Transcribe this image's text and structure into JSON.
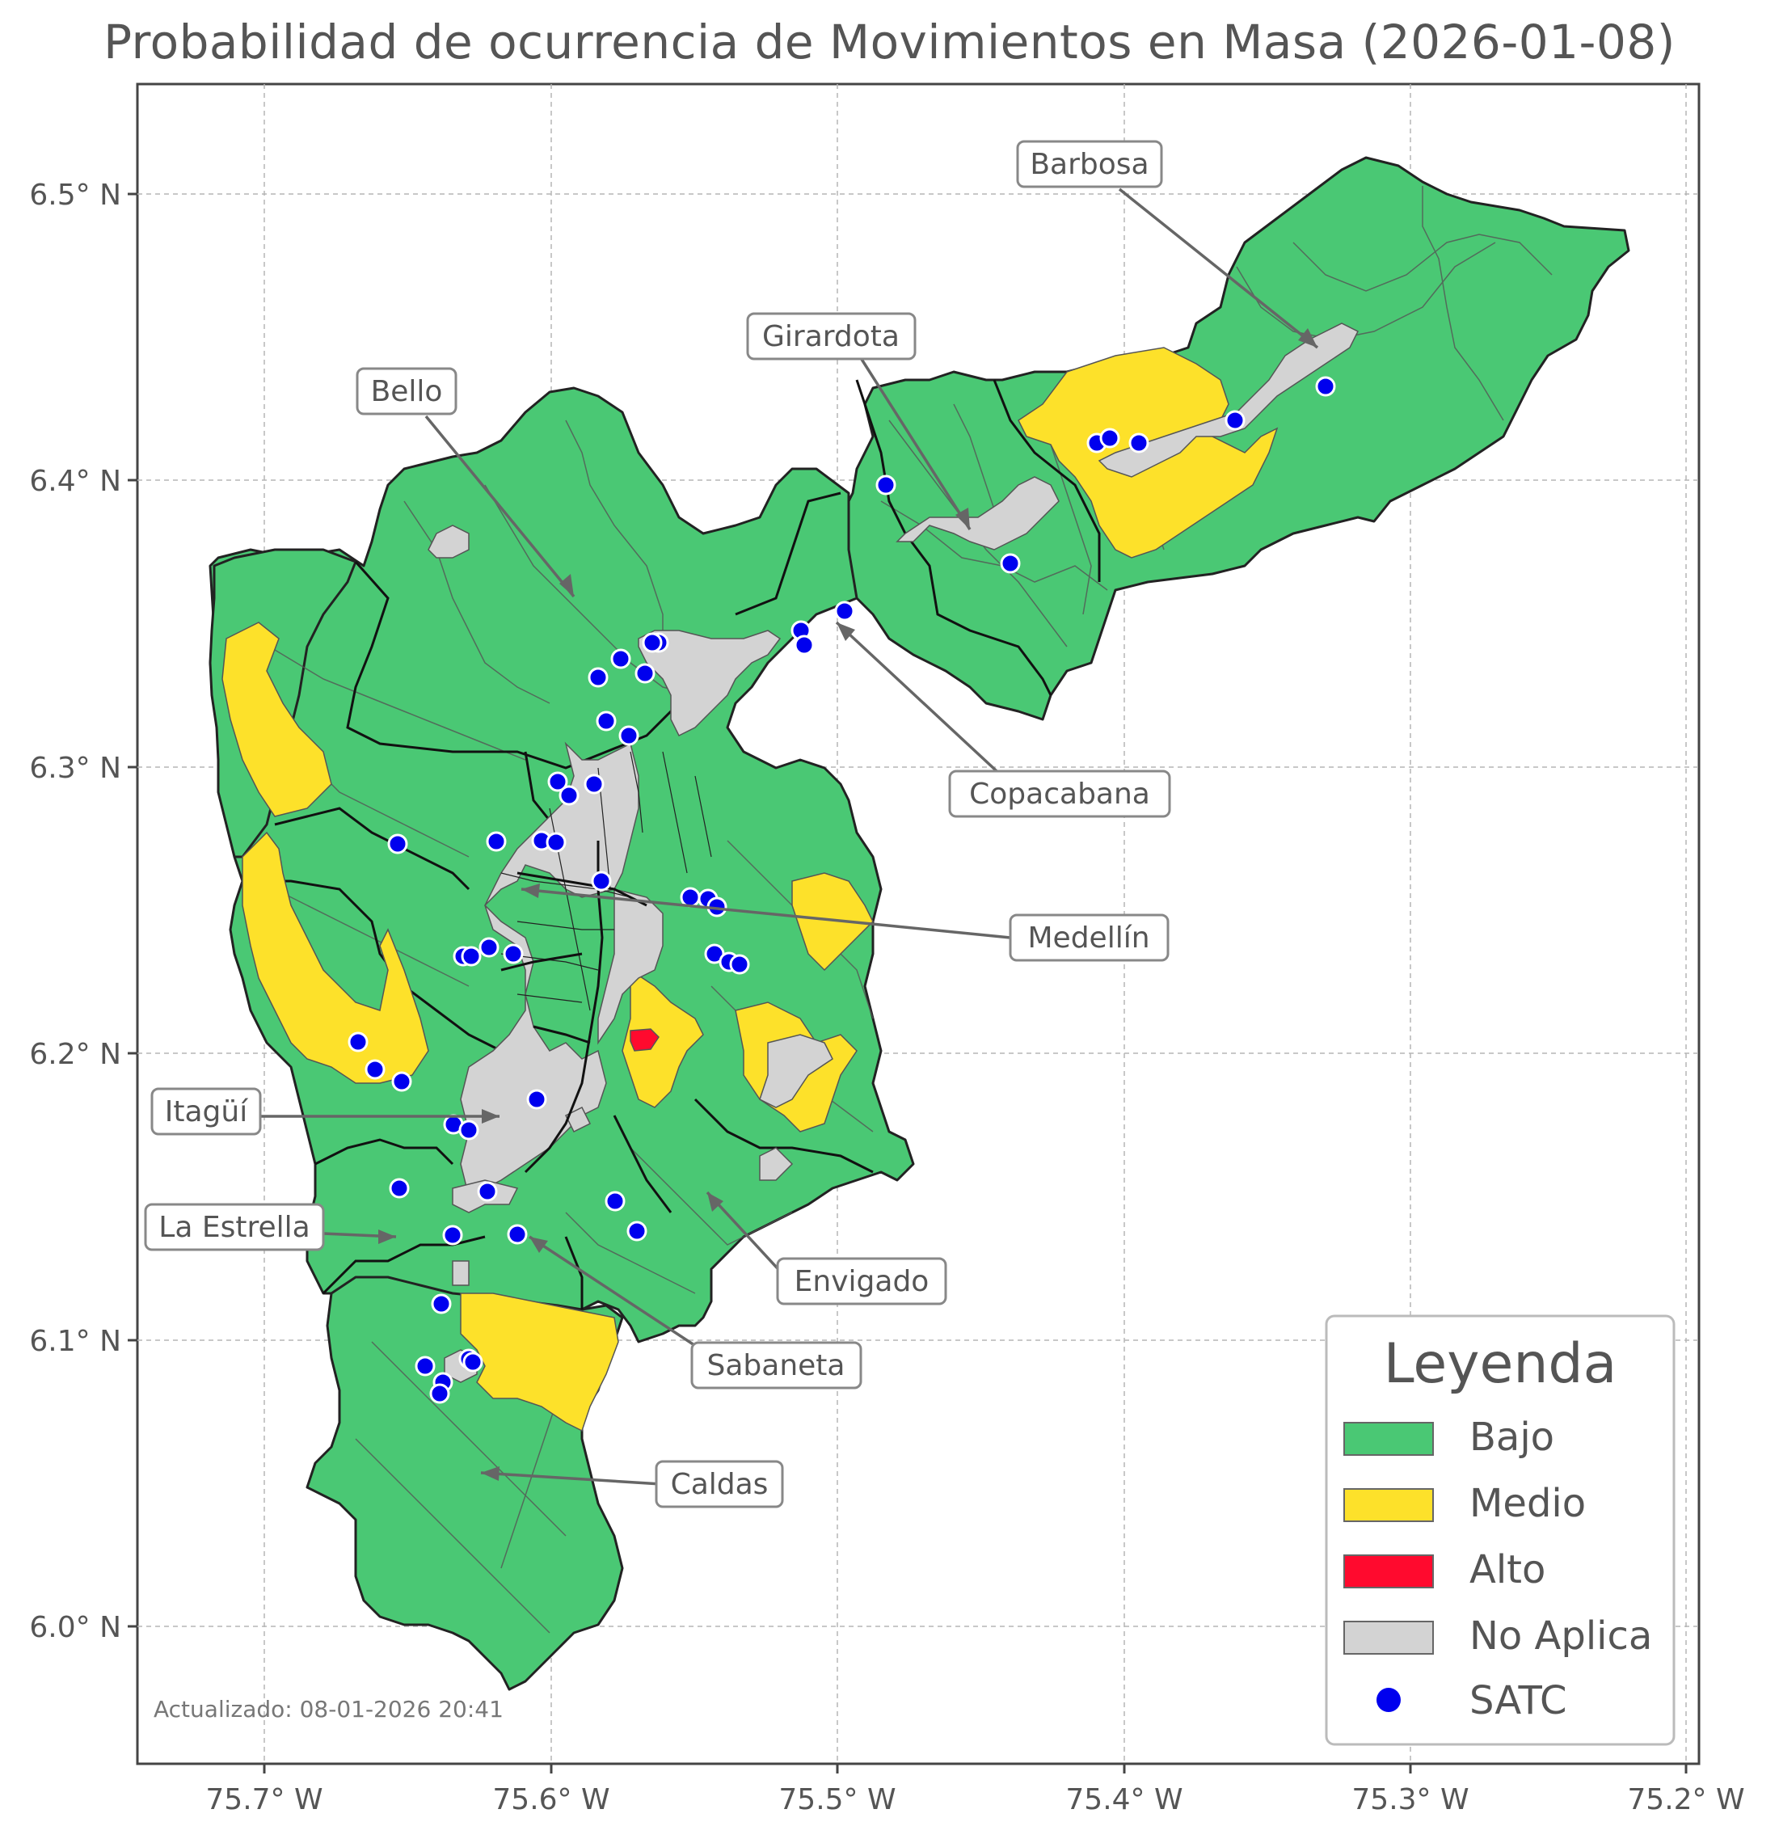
{
  "title": "Probabilidad de ocurrencia de Movimientos en Masa (2026-01-08)",
  "updated": "Actualizado: 08-01-2026 20:41",
  "axes": {
    "lon_ticks": [
      "75.7° W",
      "75.6° W",
      "75.5° W",
      "75.4° W",
      "75.3° W",
      "75.2° W"
    ],
    "lat_ticks": [
      "6.5° N",
      "6.4° N",
      "6.3° N",
      "6.2° N",
      "6.1° N",
      "6.0° N"
    ]
  },
  "municipalities": [
    {
      "name": "Barbosa"
    },
    {
      "name": "Girardota"
    },
    {
      "name": "Bello"
    },
    {
      "name": "Copacabana"
    },
    {
      "name": "Medellín"
    },
    {
      "name": "Itagüí"
    },
    {
      "name": "La Estrella"
    },
    {
      "name": "Envigado"
    },
    {
      "name": "Sabaneta"
    },
    {
      "name": "Caldas"
    }
  ],
  "legend": {
    "title": "Leyenda",
    "items": [
      {
        "label": "Bajo",
        "color": "#4ac874"
      },
      {
        "label": "Medio",
        "color": "#fde12a"
      },
      {
        "label": "Alto",
        "color": "#ff0a2e"
      },
      {
        "label": "No Aplica",
        "color": "#d3d3d3"
      },
      {
        "label": "SATC",
        "color": "#0000ee"
      }
    ]
  }
}
